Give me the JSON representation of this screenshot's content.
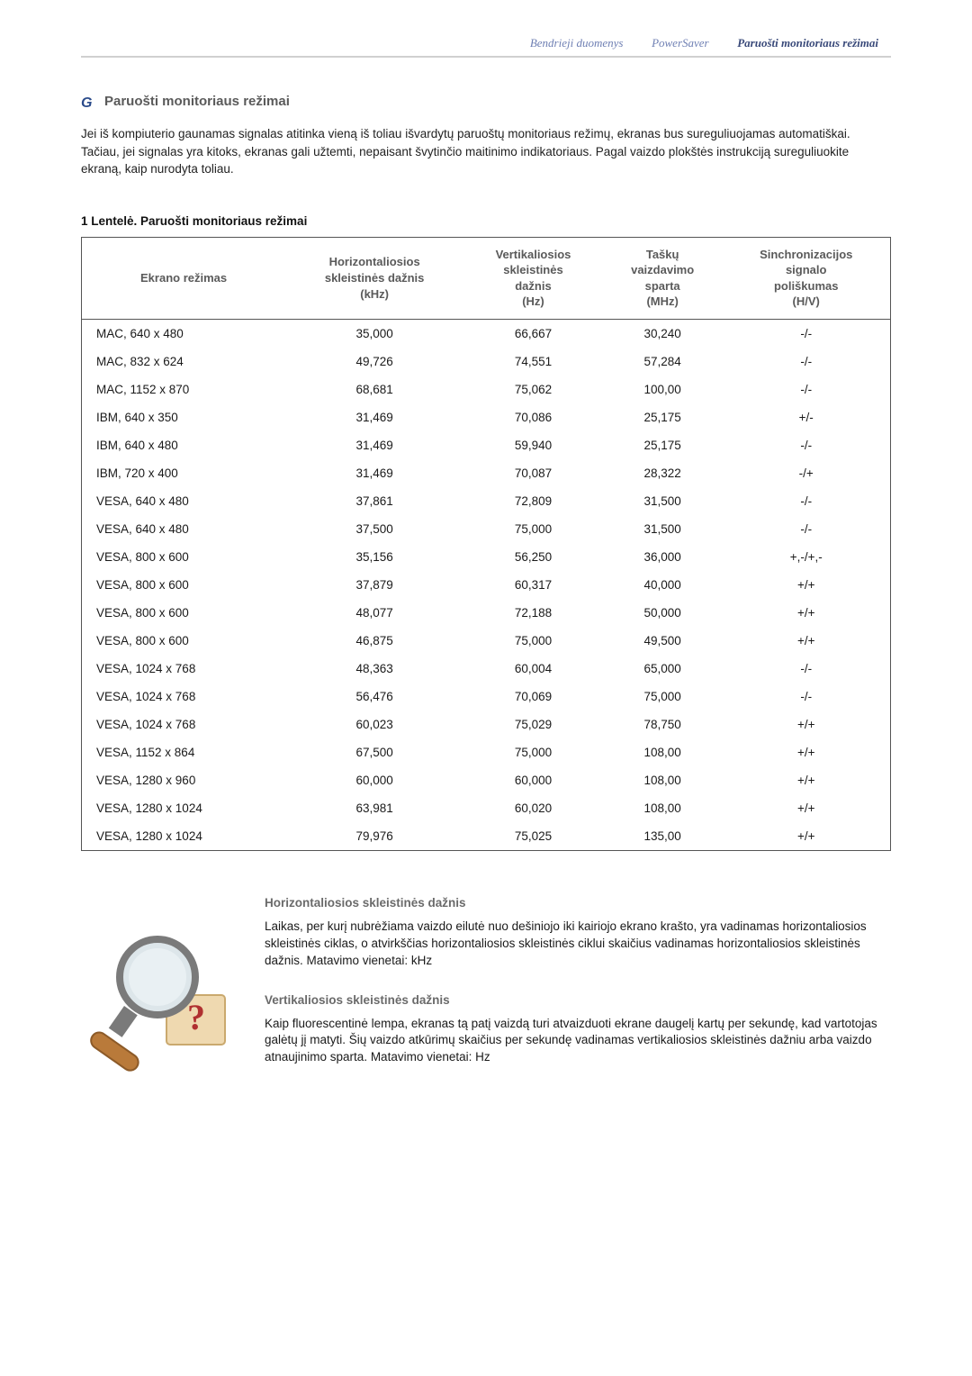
{
  "tabs": {
    "items": [
      {
        "label": "Bendrieji duomenys",
        "active": false
      },
      {
        "label": "PowerSaver",
        "active": false
      },
      {
        "label": "Paruošti monitoriaus režimai",
        "active": true
      }
    ]
  },
  "section": {
    "title": "Paruošti monitoriaus režimai",
    "intro": "Jei iš kompiuterio gaunamas signalas atitinka vieną iš toliau išvardytų paruoštų monitoriaus režimų, ekranas bus sureguliuojamas automatiškai. Tačiau, jei signalas yra kitoks, ekranas gali užtemti, nepaisant švytinčio maitinimo indikatoriaus. Pagal vaizdo plokštės instrukciją sureguliuokite ekraną, kaip nurodyta toliau."
  },
  "table": {
    "caption": "1 Lentelė. Paruošti monitoriaus režimai",
    "columns": [
      "Ekrano režimas",
      "Horizontaliosios skleistinės dažnis\n(kHz)",
      "Vertikaliosios skleistinės dažnis\n(Hz)",
      "Taškų vaizdavimo sparta\n(MHz)",
      "Sinchronizacijos signalo poliškumas\n(H/V)"
    ],
    "col_header_lines": [
      [
        "Ekrano režimas"
      ],
      [
        "Horizontaliosios",
        "skleistinės dažnis",
        "(kHz)"
      ],
      [
        "Vertikaliosios",
        "skleistinės",
        "dažnis",
        "(Hz)"
      ],
      [
        "Taškų",
        "vaizdavimo",
        "sparta",
        "(MHz)"
      ],
      [
        "Sinchronizacijos",
        "signalo",
        "poliškumas",
        "(H/V)"
      ]
    ],
    "rows": [
      [
        "MAC, 640 x 480",
        "35,000",
        "66,667",
        "30,240",
        "-/-"
      ],
      [
        "MAC, 832 x 624",
        "49,726",
        "74,551",
        "57,284",
        "-/-"
      ],
      [
        "MAC, 1152 x 870",
        "68,681",
        "75,062",
        "100,00",
        "-/-"
      ],
      [
        "IBM, 640 x 350",
        "31,469",
        "70,086",
        "25,175",
        "+/-"
      ],
      [
        "IBM, 640 x 480",
        "31,469",
        "59,940",
        "25,175",
        "-/-"
      ],
      [
        "IBM, 720 x 400",
        "31,469",
        "70,087",
        "28,322",
        "-/+"
      ],
      [
        "VESA, 640 x 480",
        "37,861",
        "72,809",
        "31,500",
        "-/-"
      ],
      [
        "VESA, 640 x 480",
        "37,500",
        "75,000",
        "31,500",
        "-/-"
      ],
      [
        "VESA, 800 x 600",
        "35,156",
        "56,250",
        "36,000",
        "+,-/+,-"
      ],
      [
        "VESA, 800 x 600",
        "37,879",
        "60,317",
        "40,000",
        "+/+"
      ],
      [
        "VESA, 800 x 600",
        "48,077",
        "72,188",
        "50,000",
        "+/+"
      ],
      [
        "VESA, 800 x 600",
        "46,875",
        "75,000",
        "49,500",
        "+/+"
      ],
      [
        "VESA, 1024 x 768",
        "48,363",
        "60,004",
        "65,000",
        "-/-"
      ],
      [
        "VESA, 1024 x 768",
        "56,476",
        "70,069",
        "75,000",
        "-/-"
      ],
      [
        "VESA, 1024 x 768",
        "60,023",
        "75,029",
        "78,750",
        "+/+"
      ],
      [
        "VESA, 1152 x 864",
        "67,500",
        "75,000",
        "108,00",
        "+/+"
      ],
      [
        "VESA, 1280 x 960",
        "60,000",
        "60,000",
        "108,00",
        "+/+"
      ],
      [
        "VESA, 1280 x 1024",
        "63,981",
        "60,020",
        "108,00",
        "+/+"
      ],
      [
        "VESA, 1280 x 1024",
        "79,976",
        "75,025",
        "135,00",
        "+/+"
      ]
    ],
    "border_color": "#555555",
    "header_text_color": "#5a5a5a"
  },
  "definitions": {
    "horiz": {
      "title": "Horizontaliosios skleistinės dažnis",
      "body": "Laikas, per kurį nubrėžiama vaizdo eilutė nuo dešiniojo iki kairiojo ekrano krašto, yra vadinamas horizontaliosios skleistinės ciklas, o atvirkščias horizontaliosios skleistinės ciklui skaičius vadinamas horizontaliosios skleistinės dažnis. Matavimo vienetai: kHz"
    },
    "vert": {
      "title": "Vertikaliosios skleistinės dažnis",
      "body": "Kaip fluorescentinė lempa, ekranas tą patį vaizdą turi atvaizduoti ekrane daugelį kartų per sekundę, kad vartotojas galėtų jį matyti. Šių vaizdo atkūrimų skaičius per sekundę vadinamas vertikaliosios skleistinės dažniu arba vaizdo atnaujinimo sparta. Matavimo vienetai: Hz"
    },
    "illustration_colors": {
      "hand": "#b97a3a",
      "magnifier_rim": "#7a7a7a",
      "magnifier_glass": "#dde6ea",
      "box": "#efd9b0",
      "question": "#b03030"
    }
  }
}
